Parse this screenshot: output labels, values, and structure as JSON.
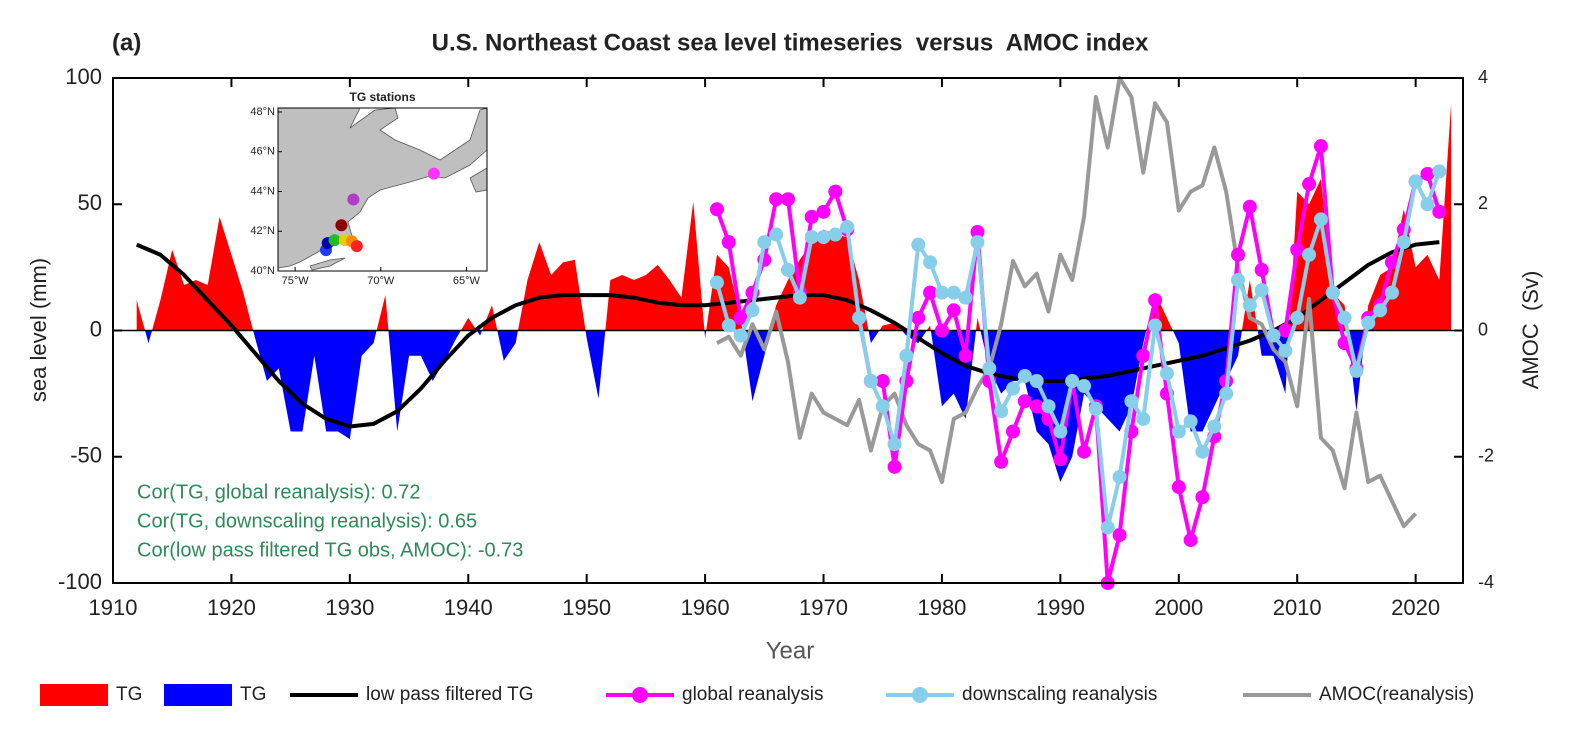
{
  "chart_data": {
    "type": "line",
    "title": "U.S. Northeast Coast sea level timeseries  versus  AMOC index",
    "panel_label": "(a)",
    "xlabel": "Year",
    "ylabel": "sea level (mm)",
    "y2label": "AMOC  (Sv)",
    "xlim": [
      1910,
      2024
    ],
    "xticks": [
      1910,
      1920,
      1930,
      1940,
      1950,
      1960,
      1970,
      1980,
      1990,
      2000,
      2010,
      2020
    ],
    "ylim": [
      -100,
      100
    ],
    "yticks": [
      -100,
      -50,
      0,
      50,
      100
    ],
    "y2lim": [
      -4,
      4
    ],
    "y2ticks": [
      -4,
      -2,
      0,
      2,
      4
    ],
    "series": [
      {
        "name": "TG",
        "type": "area",
        "colors": {
          "positive": "#ff0000",
          "negative": "#0000ff"
        },
        "x": [
          1912,
          1913,
          1914,
          1915,
          1916,
          1917,
          1918,
          1919,
          1920,
          1921,
          1922,
          1923,
          1924,
          1925,
          1926,
          1927,
          1928,
          1929,
          1930,
          1931,
          1932,
          1933,
          1934,
          1935,
          1936,
          1937,
          1938,
          1939,
          1940,
          1941,
          1942,
          1943,
          1944,
          1945,
          1946,
          1947,
          1948,
          1949,
          1950,
          1951,
          1952,
          1953,
          1954,
          1955,
          1956,
          1957,
          1958,
          1959,
          1960,
          1961,
          1962,
          1963,
          1964,
          1965,
          1966,
          1967,
          1968,
          1969,
          1970,
          1971,
          1972,
          1973,
          1974,
          1975,
          1976,
          1977,
          1978,
          1979,
          1980,
          1981,
          1982,
          1983,
          1984,
          1985,
          1986,
          1987,
          1988,
          1989,
          1990,
          1991,
          1992,
          1993,
          1994,
          1995,
          1996,
          1997,
          1998,
          1999,
          2000,
          2001,
          2002,
          2003,
          2004,
          2005,
          2006,
          2007,
          2008,
          2009,
          2010,
          2011,
          2012,
          2013,
          2014,
          2015,
          2016,
          2017,
          2018,
          2019,
          2020,
          2021,
          2022,
          2023
        ],
        "values": [
          12,
          -5,
          12,
          32,
          18,
          20,
          18,
          45,
          30,
          15,
          -3,
          -20,
          -15,
          -40,
          -40,
          -10,
          -40,
          -40,
          -43,
          -10,
          -5,
          14,
          -40,
          -10,
          -10,
          -20,
          -12,
          -3,
          5,
          -2,
          10,
          -12,
          -5,
          20,
          35,
          22,
          27,
          28,
          -3,
          -27,
          20,
          22,
          20,
          22,
          26,
          20,
          13,
          51,
          -3,
          30,
          25,
          5,
          -28,
          -10,
          10,
          20,
          28,
          35,
          40,
          38,
          37,
          20,
          -5,
          2,
          3,
          -2,
          -5,
          2,
          -30,
          -25,
          -35,
          5,
          -15,
          -25,
          -20,
          -20,
          -40,
          -45,
          -60,
          -50,
          -25,
          -30,
          -35,
          -40,
          -30,
          -5,
          15,
          5,
          -5,
          -40,
          -40,
          -30,
          -20,
          -10,
          20,
          -10,
          -10,
          -25,
          55,
          50,
          60,
          15,
          10,
          -32,
          10,
          22,
          25,
          48,
          25,
          30,
          20,
          90
        ]
      },
      {
        "name": "low pass filtered TG",
        "color": "#000000",
        "x": [
          1912,
          1914,
          1916,
          1918,
          1920,
          1922,
          1924,
          1926,
          1928,
          1930,
          1932,
          1934,
          1936,
          1938,
          1940,
          1942,
          1944,
          1946,
          1948,
          1950,
          1952,
          1954,
          1956,
          1958,
          1960,
          1962,
          1964,
          1966,
          1968,
          1970,
          1972,
          1974,
          1976,
          1978,
          1980,
          1982,
          1984,
          1986,
          1988,
          1990,
          1992,
          1994,
          1996,
          1998,
          2000,
          2002,
          2004,
          2006,
          2008,
          2010,
          2012,
          2014,
          2016,
          2018,
          2020,
          2022
        ],
        "values": [
          34,
          30,
          22,
          12,
          2,
          -9,
          -20,
          -29,
          -35,
          -38,
          -37,
          -32,
          -23,
          -12,
          -2,
          5,
          10,
          13,
          14,
          14,
          14,
          13,
          11,
          10,
          10,
          11,
          12,
          13,
          14,
          14,
          12,
          8,
          3,
          -3,
          -9,
          -14,
          -17,
          -19,
          -20,
          -20,
          -19,
          -18,
          -16,
          -14,
          -12,
          -10,
          -7,
          -4,
          0,
          5,
          12,
          19,
          26,
          31,
          34,
          35
        ]
      },
      {
        "name": "AMOC(reanalysis)",
        "color": "#999999",
        "axis": "y2",
        "x": [
          1961,
          1962,
          1963,
          1964,
          1965,
          1966,
          1967,
          1968,
          1969,
          1970,
          1971,
          1972,
          1973,
          1974,
          1975,
          1976,
          1977,
          1978,
          1979,
          1980,
          1981,
          1982,
          1983,
          1984,
          1985,
          1986,
          1987,
          1988,
          1989,
          1990,
          1991,
          1992,
          1993,
          1994,
          1995,
          1996,
          1997,
          1998,
          1999,
          2000,
          2001,
          2002,
          2003,
          2004,
          2005,
          2006,
          2007,
          2008,
          2009,
          2010,
          2011,
          2012,
          2013,
          2014,
          2015,
          2016,
          2017,
          2018,
          2019,
          2020
        ],
        "values": [
          -0.2,
          -0.1,
          -0.4,
          0.1,
          -0.3,
          0.3,
          -0.5,
          -1.7,
          -1.0,
          -1.3,
          -1.4,
          -1.5,
          -1.1,
          -1.9,
          -1.2,
          -1.0,
          -1.5,
          -1.8,
          -1.9,
          -2.4,
          -1.4,
          -1.3,
          -0.9,
          -0.6,
          0.1,
          1.1,
          0.7,
          0.9,
          0.3,
          1.2,
          0.8,
          1.8,
          3.7,
          2.9,
          4.0,
          3.7,
          2.5,
          3.6,
          3.3,
          1.9,
          2.2,
          2.3,
          2.9,
          2.2,
          1.0,
          0.2,
          0.1,
          -0.3,
          -0.5,
          -1.2,
          0.5,
          -1.7,
          -1.9,
          -2.5,
          -1.3,
          -2.4,
          -2.3,
          -2.7,
          -3.1,
          -2.9
        ]
      },
      {
        "name": "global reanalysis",
        "color": "#ff00ff",
        "marker": "circle",
        "x": [
          1961,
          1962,
          1963,
          1964,
          1965,
          1966,
          1967,
          1968,
          1969,
          1970,
          1971,
          1972,
          1973,
          1974,
          1975,
          1976,
          1977,
          1978,
          1979,
          1980,
          1981,
          1982,
          1983,
          1984,
          1985,
          1986,
          1987,
          1988,
          1989,
          1990,
          1991,
          1992,
          1993,
          1994,
          1995,
          1996,
          1997,
          1998,
          1999,
          2000,
          2001,
          2002,
          2003,
          2004,
          2005,
          2006,
          2007,
          2008,
          2009,
          2010,
          2011,
          2012,
          2013,
          2014,
          2015,
          2016,
          2017,
          2018,
          2019,
          2020,
          2021,
          2022
        ],
        "values": [
          48,
          35,
          5,
          15,
          28,
          52,
          52,
          15,
          45,
          47,
          55,
          40,
          5,
          -20,
          -20,
          -54,
          -20,
          5,
          15,
          0,
          8,
          -10,
          39,
          -20,
          -52,
          -40,
          -28,
          -30,
          -35,
          -51,
          -20,
          -48,
          -30,
          -100,
          -81,
          -40,
          -10,
          12,
          -25,
          -62,
          -83,
          -66,
          -42,
          -20,
          30,
          49,
          24,
          -2,
          0,
          32,
          58,
          73,
          15,
          -5,
          -15,
          5,
          10,
          27,
          40,
          59,
          62,
          47
        ]
      },
      {
        "name": "downscaling reanalysis",
        "color": "#87ceeb",
        "marker": "circle",
        "x": [
          1961,
          1962,
          1963,
          1964,
          1965,
          1966,
          1967,
          1968,
          1969,
          1970,
          1971,
          1972,
          1973,
          1974,
          1975,
          1976,
          1977,
          1978,
          1979,
          1980,
          1981,
          1982,
          1983,
          1984,
          1985,
          1986,
          1987,
          1988,
          1989,
          1990,
          1991,
          1992,
          1993,
          1994,
          1995,
          1996,
          1997,
          1998,
          1999,
          2000,
          2001,
          2002,
          2003,
          2004,
          2005,
          2006,
          2007,
          2008,
          2009,
          2010,
          2011,
          2012,
          2013,
          2014,
          2015,
          2016,
          2017,
          2018,
          2019,
          2020,
          2021,
          2022
        ],
        "values": [
          19,
          2,
          -2,
          8,
          35,
          38,
          24,
          13,
          37,
          37,
          38,
          41,
          5,
          -20,
          -30,
          -45,
          -10,
          34,
          27,
          15,
          15,
          13,
          35,
          -15,
          -32,
          -23,
          -18,
          -20,
          -30,
          -40,
          -20,
          -22,
          -31,
          -78,
          -58,
          -28,
          -35,
          2,
          -17,
          -40,
          -36,
          -48,
          -38,
          -25,
          20,
          10,
          16,
          -2,
          -8,
          5,
          30,
          44,
          15,
          5,
          -16,
          3,
          8,
          15,
          35,
          59,
          50,
          63
        ]
      }
    ],
    "annotations": [
      "Cor(TG, global reanalysis): 0.72",
      "Cor(TG, downscaling reanalysis): 0.65",
      "Cor(low pass filtered TG obs, AMOC): -0.73"
    ],
    "annotation_color": "#2e8b57"
  },
  "inset": {
    "title": "TG stations",
    "xlim": [
      -76,
      -63.8
    ],
    "ylim": [
      40,
      48.2
    ],
    "xticks": [
      {
        "value": -75,
        "label": "75°W"
      },
      {
        "value": -70,
        "label": "70°W"
      },
      {
        "value": -65,
        "label": "65°W"
      }
    ],
    "yticks": [
      {
        "value": 40,
        "label": "40°N"
      },
      {
        "value": 42,
        "label": "42°N"
      },
      {
        "value": 44,
        "label": "44°N"
      },
      {
        "value": 46,
        "label": "46°N"
      },
      {
        "value": 48,
        "label": "48°N"
      }
    ],
    "stations": [
      {
        "lon": -66.9,
        "lat": 44.9,
        "color": "#ff33ff"
      },
      {
        "lon": -71.6,
        "lat": 43.6,
        "color": "#b03cc8"
      },
      {
        "lon": -72.3,
        "lat": 42.3,
        "color": "#8b0000"
      },
      {
        "lon": -73.2,
        "lat": 41.05,
        "color": "#1a3cff"
      },
      {
        "lon": -73.1,
        "lat": 41.4,
        "color": "#0000aa"
      },
      {
        "lon": -72.7,
        "lat": 41.55,
        "color": "#22bb22"
      },
      {
        "lon": -72.1,
        "lat": 41.55,
        "color": "#e6d000"
      },
      {
        "lon": -71.7,
        "lat": 41.5,
        "color": "#ff8c00"
      },
      {
        "lon": -71.4,
        "lat": 41.25,
        "color": "#ff2020"
      }
    ]
  }
}
